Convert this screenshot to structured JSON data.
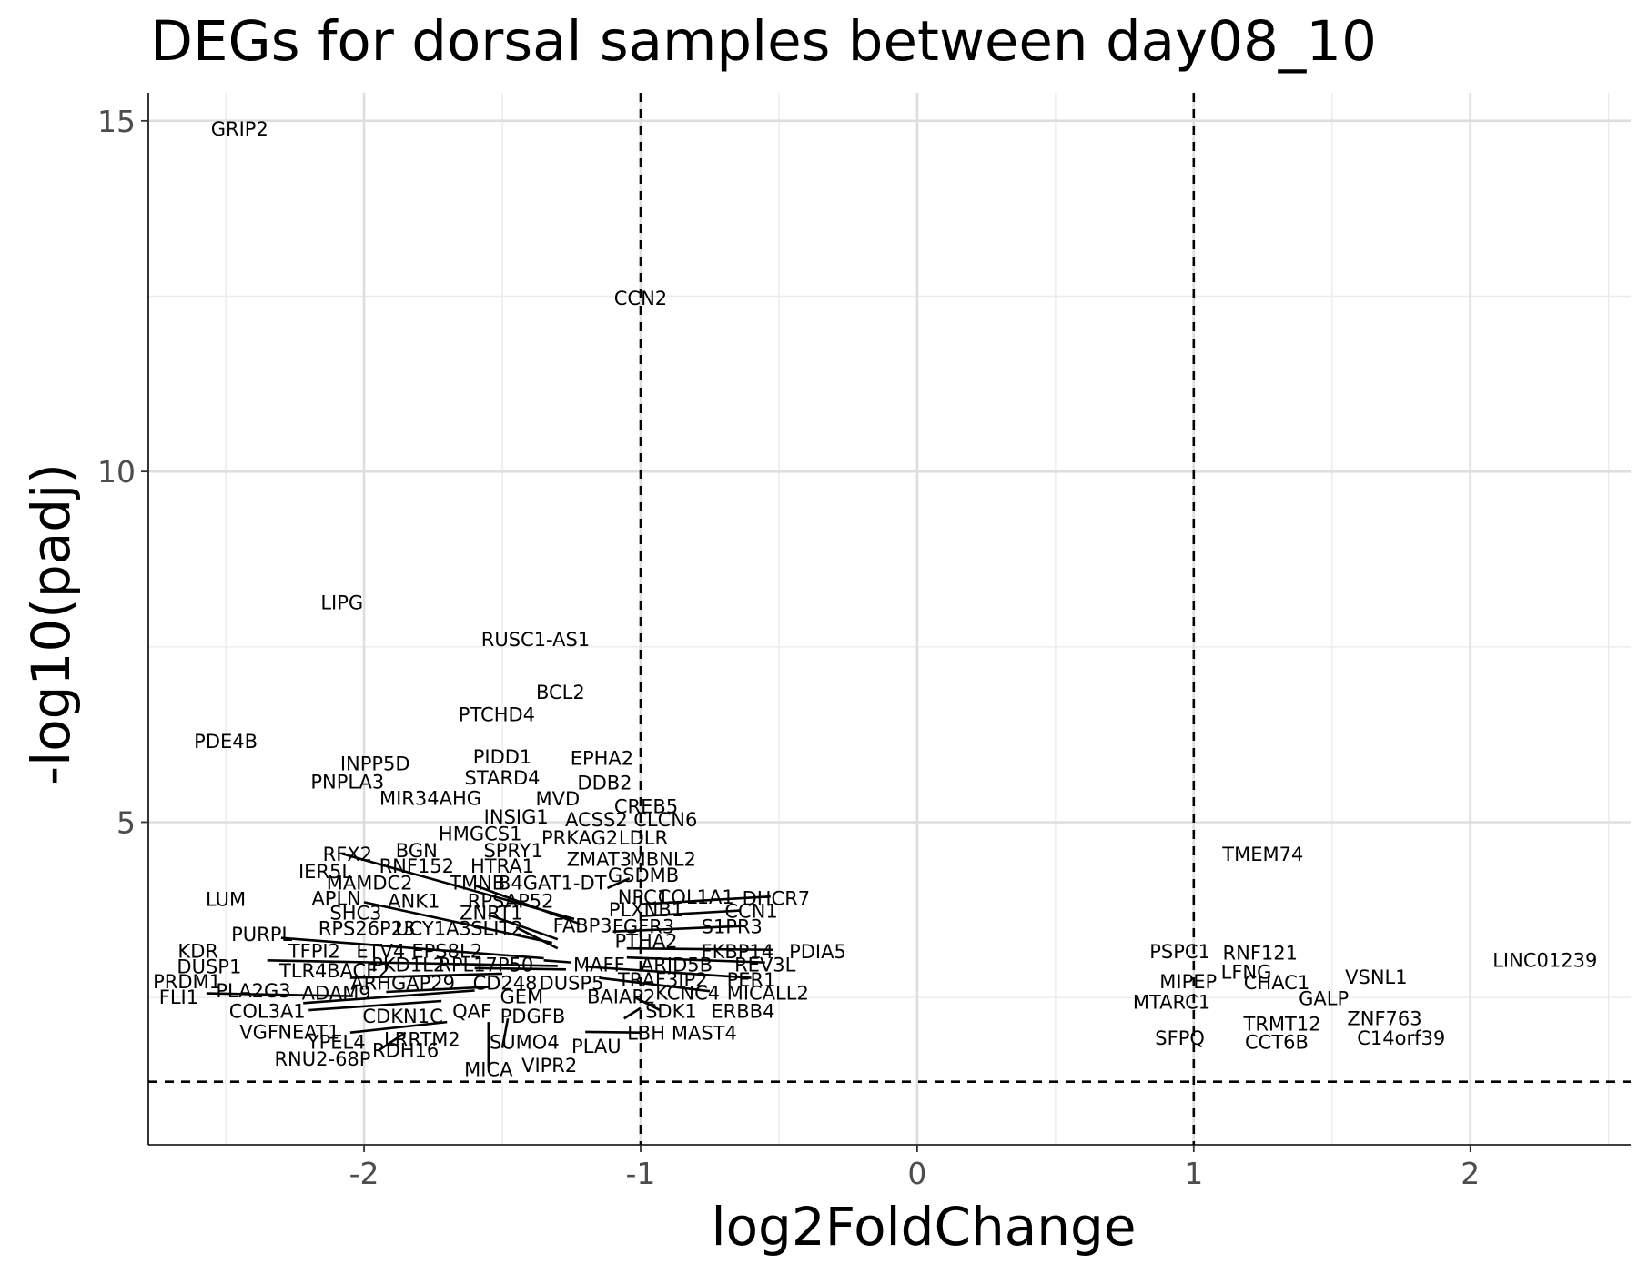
{
  "chart_data": {
    "type": "scatter",
    "title": "DEGs for dorsal samples between day08_10",
    "xlabel": "log2FoldChange",
    "ylabel": "-log10(padj)",
    "xlim": [
      -2.78,
      2.58
    ],
    "ylim": [
      0.4,
      15.4
    ],
    "x_ticks": [
      -2,
      -1,
      0,
      1,
      2
    ],
    "x_tick_labels": [
      "-2",
      "-1",
      "0",
      "1",
      "2"
    ],
    "y_ticks": [
      5,
      10,
      15
    ],
    "y_tick_labels": [
      "5",
      "10",
      "15"
    ],
    "grid": "major and minor",
    "thresholds": {
      "x": [
        -1,
        1
      ],
      "y": 1.3
    },
    "points": [
      {
        "label": "GRIP2",
        "x": -2.45,
        "y": 14.88
      },
      {
        "label": "CCN2",
        "x": -1.0,
        "y": 12.47
      },
      {
        "label": "LIPG",
        "x": -2.08,
        "y": 8.13
      },
      {
        "label": "RUSC1-AS1",
        "x": -1.38,
        "y": 7.6
      },
      {
        "label": "BCL2",
        "x": -1.29,
        "y": 6.85
      },
      {
        "label": "PTCHD4",
        "x": -1.52,
        "y": 6.53
      },
      {
        "label": "PDE4B",
        "x": -2.5,
        "y": 6.15
      },
      {
        "label": "PIDD1",
        "x": -1.5,
        "y": 5.93
      },
      {
        "label": "EPHA2",
        "x": -1.14,
        "y": 5.91
      },
      {
        "label": "INPP5D",
        "x": -1.96,
        "y": 5.83
      },
      {
        "label": "STARD4",
        "x": -1.5,
        "y": 5.63
      },
      {
        "label": "PNPLA3",
        "x": -2.06,
        "y": 5.57
      },
      {
        "label": "DDB2",
        "x": -1.13,
        "y": 5.56
      },
      {
        "label": "MIR34AHG",
        "x": -1.76,
        "y": 5.34
      },
      {
        "label": "MVD",
        "x": -1.3,
        "y": 5.33
      },
      {
        "label": "CREB5",
        "x": -0.98,
        "y": 5.22
      },
      {
        "label": "INSIG1",
        "x": -1.45,
        "y": 5.07
      },
      {
        "label": "ACSS2",
        "x": -1.16,
        "y": 5.03
      },
      {
        "label": "CLCN6",
        "x": -0.91,
        "y": 5.03
      },
      {
        "label": "HMGCS1",
        "x": -1.58,
        "y": 4.83
      },
      {
        "label": "PRKAG2",
        "x": -1.22,
        "y": 4.77
      },
      {
        "label": "LDLR",
        "x": -0.99,
        "y": 4.77
      },
      {
        "label": "SPRY1",
        "x": -1.46,
        "y": 4.59
      },
      {
        "label": "BGN",
        "x": -1.81,
        "y": 4.59
      },
      {
        "label": "RFX2",
        "x": -2.06,
        "y": 4.54
      },
      {
        "label": "ZMAT3",
        "x": -1.15,
        "y": 4.47
      },
      {
        "label": "MBNL2",
        "x": -0.92,
        "y": 4.47
      },
      {
        "label": "RNF152",
        "x": -1.81,
        "y": 4.37
      },
      {
        "label": "HTRA1",
        "x": -1.5,
        "y": 4.37
      },
      {
        "label": "IER5L",
        "x": -2.14,
        "y": 4.29
      },
      {
        "label": "GSDMB",
        "x": -0.99,
        "y": 4.24
      },
      {
        "label": "MAMDC2",
        "x": -1.98,
        "y": 4.13
      },
      {
        "label": "TMNB",
        "x": -1.59,
        "y": 4.13
      },
      {
        "label": "B4GAT1-DT",
        "x": -1.32,
        "y": 4.13
      },
      {
        "label": "NPC1",
        "x": -0.99,
        "y": 3.93
      },
      {
        "label": "COL1A1",
        "x": -0.8,
        "y": 3.93
      },
      {
        "label": "DHCR7",
        "x": -0.51,
        "y": 3.91
      },
      {
        "label": "APLN",
        "x": -2.1,
        "y": 3.91
      },
      {
        "label": "LUM",
        "x": -2.5,
        "y": 3.9
      },
      {
        "label": "ANK1",
        "x": -1.82,
        "y": 3.87
      },
      {
        "label": "RPSAP52",
        "x": -1.47,
        "y": 3.87
      },
      {
        "label": "PLXNB1",
        "x": -0.98,
        "y": 3.75
      },
      {
        "label": "CCN1",
        "x": -0.6,
        "y": 3.73
      },
      {
        "label": "SHC3",
        "x": -2.03,
        "y": 3.7
      },
      {
        "label": "ZNRT1",
        "x": -1.54,
        "y": 3.7
      },
      {
        "label": "FABP3",
        "x": -1.21,
        "y": 3.52
      },
      {
        "label": "FGFR3",
        "x": -0.99,
        "y": 3.51
      },
      {
        "label": "S1PR3",
        "x": -0.67,
        "y": 3.51
      },
      {
        "label": "RPS26P23",
        "x": -1.99,
        "y": 3.48
      },
      {
        "label": "UCY1A3",
        "x": -1.75,
        "y": 3.48
      },
      {
        "label": "SLIT2",
        "x": -1.52,
        "y": 3.48
      },
      {
        "label": "PURPL",
        "x": -2.37,
        "y": 3.4
      },
      {
        "label": "PTHA2",
        "x": -0.98,
        "y": 3.3
      },
      {
        "label": "FKBP14",
        "x": -0.65,
        "y": 3.15
      },
      {
        "label": "PDIA5",
        "x": -0.36,
        "y": 3.15
      },
      {
        "label": "KDR",
        "x": -2.6,
        "y": 3.16
      },
      {
        "label": "TFPI2",
        "x": -2.18,
        "y": 3.16
      },
      {
        "label": "ETV4",
        "x": -1.94,
        "y": 3.16
      },
      {
        "label": "EPS8L2",
        "x": -1.7,
        "y": 3.16
      },
      {
        "label": "PKD1L2",
        "x": -1.84,
        "y": 2.96
      },
      {
        "label": "RPL17P50",
        "x": -1.56,
        "y": 2.96
      },
      {
        "label": "MAFF",
        "x": -1.15,
        "y": 2.96
      },
      {
        "label": "ARID5B",
        "x": -0.87,
        "y": 2.96
      },
      {
        "label": "REV3L",
        "x": -0.55,
        "y": 2.96
      },
      {
        "label": "DUSP1",
        "x": -2.56,
        "y": 2.94
      },
      {
        "label": "TLR4",
        "x": -2.22,
        "y": 2.88
      },
      {
        "label": "BACE2",
        "x": -2.02,
        "y": 2.88
      },
      {
        "label": "TRAF3IP2",
        "x": -0.92,
        "y": 2.75
      },
      {
        "label": "PER1",
        "x": -0.6,
        "y": 2.75
      },
      {
        "label": "PRDM1",
        "x": -2.64,
        "y": 2.72
      },
      {
        "label": "ARHGAP29",
        "x": -1.86,
        "y": 2.7
      },
      {
        "label": "CD248",
        "x": -1.49,
        "y": 2.7
      },
      {
        "label": "DUSP5",
        "x": -1.25,
        "y": 2.7
      },
      {
        "label": "PLA2G3",
        "x": -2.4,
        "y": 2.59
      },
      {
        "label": "ADAM9",
        "x": -2.1,
        "y": 2.56
      },
      {
        "label": "KCNC4",
        "x": -0.83,
        "y": 2.56
      },
      {
        "label": "MICALL2",
        "x": -0.54,
        "y": 2.56
      },
      {
        "label": "BAIAP2",
        "x": -1.07,
        "y": 2.51
      },
      {
        "label": "GEM",
        "x": -1.43,
        "y": 2.51
      },
      {
        "label": "FLI1",
        "x": -2.67,
        "y": 2.5
      },
      {
        "label": "COL3A1",
        "x": -2.35,
        "y": 2.3
      },
      {
        "label": "SDK1",
        "x": -0.89,
        "y": 2.3
      },
      {
        "label": "ERBB4",
        "x": -0.63,
        "y": 2.3
      },
      {
        "label": "QAF",
        "x": -1.61,
        "y": 2.3
      },
      {
        "label": "CDKN1C",
        "x": -1.86,
        "y": 2.23
      },
      {
        "label": "PDGFB",
        "x": -1.39,
        "y": 2.23
      },
      {
        "label": "VGF",
        "x": -2.38,
        "y": 2.0
      },
      {
        "label": "NEAT1",
        "x": -2.2,
        "y": 2.0
      },
      {
        "label": "MAST4",
        "x": -0.77,
        "y": 1.99
      },
      {
        "label": "LBH",
        "x": -0.98,
        "y": 1.99
      },
      {
        "label": "LRRTM2",
        "x": -1.79,
        "y": 1.9
      },
      {
        "label": "YPEL4",
        "x": -2.1,
        "y": 1.86
      },
      {
        "label": "SUMO4",
        "x": -1.42,
        "y": 1.86
      },
      {
        "label": "PLAU",
        "x": -1.16,
        "y": 1.8
      },
      {
        "label": "RDH16",
        "x": -1.85,
        "y": 1.74
      },
      {
        "label": "RNU2-68P",
        "x": -2.15,
        "y": 1.62
      },
      {
        "label": "VIPR2",
        "x": -1.33,
        "y": 1.53
      },
      {
        "label": "MICA",
        "x": -1.55,
        "y": 1.47
      },
      {
        "label": "TMEM74",
        "x": 1.25,
        "y": 4.54
      },
      {
        "label": "PSPC1",
        "x": 0.95,
        "y": 3.15
      },
      {
        "label": "RNF121",
        "x": 1.24,
        "y": 3.13
      },
      {
        "label": "LINC01239",
        "x": 2.27,
        "y": 3.03
      },
      {
        "label": "LFNG",
        "x": 1.19,
        "y": 2.86
      },
      {
        "label": "VSNL1",
        "x": 1.66,
        "y": 2.79
      },
      {
        "label": "MIPEP",
        "x": 0.98,
        "y": 2.72
      },
      {
        "label": "CHAC1",
        "x": 1.3,
        "y": 2.71
      },
      {
        "label": "GALP",
        "x": 1.47,
        "y": 2.48
      },
      {
        "label": "MTARC1",
        "x": 0.92,
        "y": 2.43
      },
      {
        "label": "ZNF763",
        "x": 1.69,
        "y": 2.2
      },
      {
        "label": "TRMT12",
        "x": 1.32,
        "y": 2.12
      },
      {
        "label": "SFPQ",
        "x": 0.95,
        "y": 1.92
      },
      {
        "label": "C14orf39",
        "x": 1.75,
        "y": 1.92
      },
      {
        "label": "CCT6B",
        "x": 1.3,
        "y": 1.86
      }
    ]
  }
}
